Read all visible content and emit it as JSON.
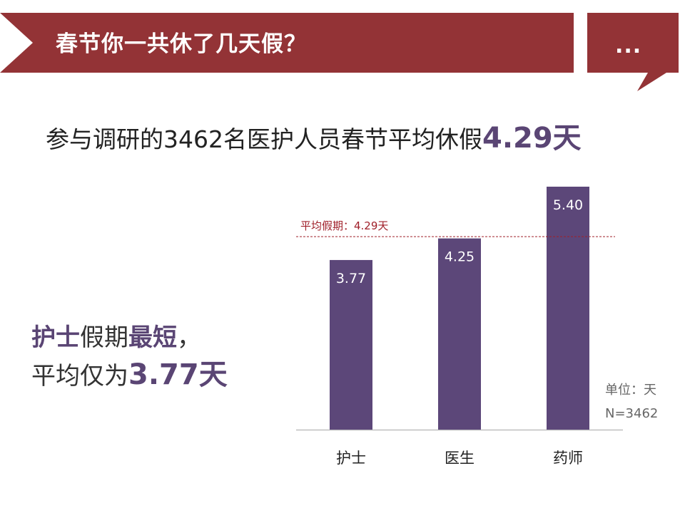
{
  "header": {
    "title": "春节你一共休了几天假？",
    "bubble_text": "..."
  },
  "headline": {
    "prefix": "参与调研的3462名医护人员春节平均休假",
    "highlight": "4.29天"
  },
  "callout": {
    "line1_a": "护士",
    "line1_b": "假期",
    "line1_c": "最短",
    "line1_d": "，",
    "line2_a": "平均仅为",
    "line2_b": "3.77天"
  },
  "notes": {
    "unit": "单位：天",
    "n": "N=3462"
  },
  "colors": {
    "banner": "#933336",
    "bar": "#5c4779",
    "accent": "#5a4574",
    "reference_line": "#a0202a"
  },
  "chart_data": {
    "type": "bar",
    "categories": [
      "护士",
      "医生",
      "药师"
    ],
    "values": [
      3.77,
      4.25,
      5.4
    ],
    "value_labels": [
      "3.77",
      "4.25",
      "5.40"
    ],
    "reference_line": {
      "value": 4.29,
      "label": "平均假期：4.29天"
    },
    "ylim": [
      0,
      5.4
    ],
    "grid": false,
    "legend": "none",
    "title": "",
    "xlabel": "",
    "ylabel": ""
  }
}
